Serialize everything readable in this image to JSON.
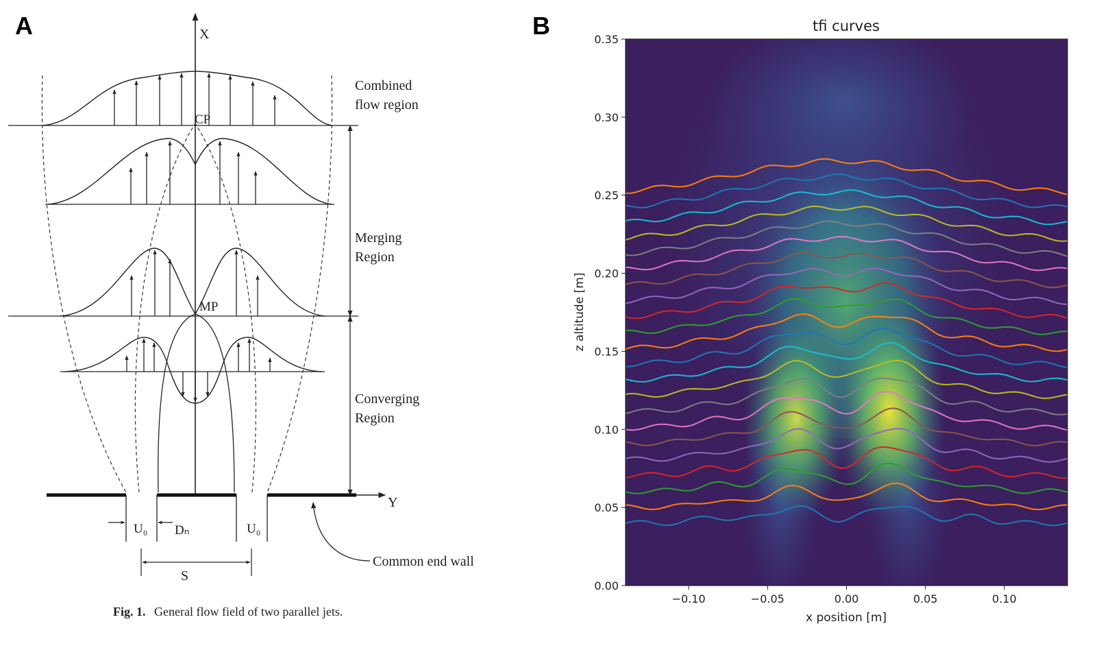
{
  "panel_a": {
    "letter": "A",
    "axis_x_label": "X",
    "axis_y_label": "Y",
    "point_cp": "CP",
    "point_mp": "MP",
    "region_combined_line1": "Combined",
    "region_combined_line2": "flow region",
    "region_merging_line1": "Merging",
    "region_merging_line2": "Region",
    "region_converging_line1": "Converging",
    "region_converging_line2": "Region",
    "label_u0_left": "U₀",
    "label_u0_right": "U₀",
    "label_dn": "Dₙ",
    "label_s": "S",
    "label_wall": "Common end wall",
    "caption_bold": "Fig. 1.",
    "caption_text": "General flow field of two parallel jets."
  },
  "panel_b": {
    "letter": "B",
    "chart_data": {
      "type": "line",
      "title": "tfi curves",
      "xlabel": "x position [m]",
      "ylabel": "z altitude [m]",
      "xlim": [
        -0.14,
        0.14
      ],
      "ylim": [
        0.0,
        0.35
      ],
      "xticks": [
        -0.1,
        -0.05,
        0.0,
        0.05,
        0.1
      ],
      "xtick_labels": [
        "−0.10",
        "−0.05",
        "0.00",
        "0.05",
        "0.10"
      ],
      "yticks": [
        0.0,
        0.05,
        0.1,
        0.15,
        0.2,
        0.25,
        0.3,
        0.35
      ],
      "ytick_labels": [
        "0.00",
        "0.05",
        "0.10",
        "0.15",
        "0.20",
        "0.25",
        "0.30",
        "0.35"
      ],
      "grid": false,
      "background": "heatmap",
      "colormap": "viridis",
      "series_colors": [
        "#1f77b4",
        "#ff7f0e",
        "#2ca02c",
        "#d62728",
        "#9467bd",
        "#8c564b",
        "#e377c2",
        "#7f7f7f",
        "#bcbd22",
        "#17becf"
      ],
      "series_baselines": [
        0.04,
        0.05,
        0.06,
        0.07,
        0.08,
        0.09,
        0.1,
        0.11,
        0.12,
        0.13,
        0.14,
        0.15,
        0.16,
        0.17,
        0.18,
        0.19,
        0.2,
        0.21,
        0.22,
        0.23,
        0.24,
        0.25
      ]
    }
  }
}
